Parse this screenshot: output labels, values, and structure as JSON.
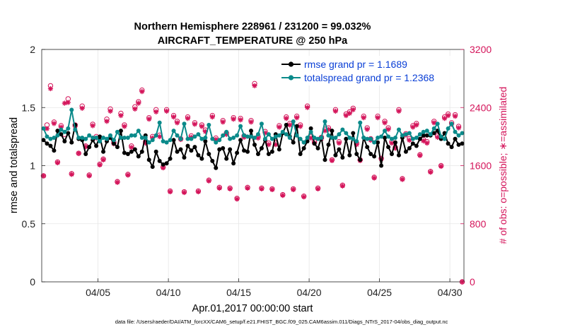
{
  "chart_data": {
    "type": "line",
    "title": "Northern Hemisphere 228961 / 231200 = 99.032%",
    "subtitle": "AIRCRAFT_TEMPERATURE @ 250 hPa",
    "xlabel": "Apr.01,2017 00:00:00 start",
    "ylabel": "rmse and totalspread",
    "ylabel_right": "# of obs: o=possible; ∗=assimilated",
    "footer": "data file: /Users/raeder/DAI/ATM_forcXX/CAM6_setup/f.e21.FHIST_BGC.f09_025.CAM6assim.011/Diags_NTrS_2017-04/obs_diag_output.nc",
    "xlim": [
      1.0,
      31.0
    ],
    "ylim": [
      0,
      2
    ],
    "ylim_right": [
      0,
      3200
    ],
    "x_ticks": [
      5,
      10,
      15,
      20,
      25,
      30
    ],
    "x_tick_labels": [
      "04/05",
      "04/10",
      "04/15",
      "04/20",
      "04/25",
      "04/30"
    ],
    "y_ticks": [
      0,
      0.5,
      1,
      1.5,
      2
    ],
    "y_tick_labels": [
      "0",
      "0.5",
      "1",
      "1.5",
      "2"
    ],
    "y_ticks_right": [
      0,
      800,
      1600,
      2400,
      3200
    ],
    "y_tick_labels_right": [
      "0",
      "800",
      "1600",
      "2400",
      "3200"
    ],
    "grid": true,
    "legend_position": "top-right",
    "series": [
      {
        "name": "rmse grand pr = 1.1689",
        "color": "#000000",
        "marker": "circle",
        "x": [
          1.125,
          1.375,
          1.625,
          1.875,
          2.125,
          2.375,
          2.625,
          2.875,
          3.125,
          3.375,
          3.625,
          3.875,
          4.125,
          4.375,
          4.625,
          4.875,
          5.125,
          5.375,
          5.625,
          5.875,
          6.125,
          6.375,
          6.625,
          6.875,
          7.125,
          7.375,
          7.625,
          7.875,
          8.125,
          8.375,
          8.625,
          8.875,
          9.125,
          9.375,
          9.625,
          9.875,
          10.125,
          10.375,
          10.625,
          10.875,
          11.125,
          11.375,
          11.625,
          11.875,
          12.125,
          12.375,
          12.625,
          12.875,
          13.125,
          13.375,
          13.625,
          13.875,
          14.125,
          14.375,
          14.625,
          14.875,
          15.125,
          15.375,
          15.625,
          15.875,
          16.125,
          16.375,
          16.625,
          16.875,
          17.125,
          17.375,
          17.625,
          17.875,
          18.125,
          18.375,
          18.625,
          18.875,
          19.125,
          19.375,
          19.625,
          19.875,
          20.125,
          20.375,
          20.625,
          20.875,
          21.125,
          21.375,
          21.625,
          21.875,
          22.125,
          22.375,
          22.625,
          22.875,
          23.125,
          23.375,
          23.625,
          23.875,
          24.125,
          24.375,
          24.625,
          24.875,
          25.125,
          25.375,
          25.625,
          25.875,
          26.125,
          26.375,
          26.625,
          26.875,
          27.125,
          27.375,
          27.625,
          27.875,
          28.125,
          28.375,
          28.625,
          28.875,
          29.125,
          29.375,
          29.625,
          29.875,
          30.125,
          30.375,
          30.625,
          30.875
        ],
        "values": [
          1.22,
          1.19,
          1.17,
          1.13,
          1.3,
          1.27,
          1.21,
          1.28,
          1.2,
          1.35,
          1.23,
          1.22,
          1.1,
          1.16,
          1.22,
          1.17,
          1.25,
          1.12,
          1.21,
          1.24,
          1.19,
          1.16,
          1.3,
          1.11,
          1.1,
          1.12,
          1.14,
          1.08,
          1.12,
          1.26,
          1.05,
          0.99,
          1.12,
          1.04,
          1.01,
          1.02,
          1.06,
          1.22,
          1.12,
          1.14,
          1.07,
          1.17,
          1.13,
          1.16,
          1.09,
          1.06,
          1.21,
          1.1,
          1.04,
          0.98,
          1.14,
          1.15,
          1.06,
          1.14,
          1.02,
          1.11,
          1.22,
          1.13,
          1.12,
          1.3,
          1.18,
          1.1,
          1.15,
          1.22,
          1.1,
          1.12,
          1.27,
          1.14,
          1.28,
          1.35,
          1.25,
          1.2,
          1.34,
          1.1,
          1.15,
          1.21,
          1.32,
          1.19,
          1.15,
          1.24,
          1.05,
          1.18,
          1.3,
          1.09,
          1.14,
          1.07,
          1.23,
          1.09,
          1.28,
          1.1,
          1.05,
          1.24,
          1.16,
          1.1,
          1.08,
          1.2,
          1.0,
          1.24,
          1.16,
          1.1,
          1.2,
          1.09,
          1.24,
          1.12,
          1.15,
          1.19,
          1.17,
          1.23,
          1.26,
          1.26,
          1.26,
          1.28,
          1.3,
          1.23,
          1.28,
          1.19,
          1.16,
          1.23,
          1.18,
          1.19
        ]
      },
      {
        "name": "totalspread grand pr = 1.2368",
        "color": "#0a8a8a",
        "marker": "circle",
        "x": [
          1.125,
          1.375,
          1.625,
          1.875,
          2.125,
          2.375,
          2.625,
          2.875,
          3.125,
          3.375,
          3.625,
          3.875,
          4.125,
          4.375,
          4.625,
          4.875,
          5.125,
          5.375,
          5.625,
          5.875,
          6.125,
          6.375,
          6.625,
          6.875,
          7.125,
          7.375,
          7.625,
          7.875,
          8.125,
          8.375,
          8.625,
          8.875,
          9.125,
          9.375,
          9.625,
          9.875,
          10.125,
          10.375,
          10.625,
          10.875,
          11.125,
          11.375,
          11.625,
          11.875,
          12.125,
          12.375,
          12.625,
          12.875,
          13.125,
          13.375,
          13.625,
          13.875,
          14.125,
          14.375,
          14.625,
          14.875,
          15.125,
          15.375,
          15.625,
          15.875,
          16.125,
          16.375,
          16.625,
          16.875,
          17.125,
          17.375,
          17.625,
          17.875,
          18.125,
          18.375,
          18.625,
          18.875,
          19.125,
          19.375,
          19.625,
          19.875,
          20.125,
          20.375,
          20.625,
          20.875,
          21.125,
          21.375,
          21.625,
          21.875,
          22.125,
          22.375,
          22.625,
          22.875,
          23.125,
          23.375,
          23.625,
          23.875,
          24.125,
          24.375,
          24.625,
          24.875,
          25.125,
          25.375,
          25.625,
          25.875,
          26.125,
          26.375,
          26.625,
          26.875,
          27.125,
          27.375,
          27.625,
          27.875,
          28.125,
          28.375,
          28.625,
          28.875,
          29.125,
          29.375,
          29.625,
          29.875,
          30.125,
          30.375,
          30.625,
          30.875
        ],
        "values": [
          1.32,
          1.25,
          1.23,
          1.24,
          1.26,
          1.31,
          1.29,
          1.32,
          1.48,
          1.31,
          1.24,
          1.24,
          1.23,
          1.26,
          1.24,
          1.24,
          1.21,
          1.24,
          1.23,
          1.26,
          1.22,
          1.29,
          1.24,
          1.24,
          1.24,
          1.26,
          1.26,
          1.3,
          1.24,
          1.24,
          1.2,
          1.22,
          1.26,
          1.37,
          1.21,
          1.2,
          1.22,
          1.3,
          1.26,
          1.23,
          1.36,
          1.23,
          1.23,
          1.25,
          1.27,
          1.23,
          1.24,
          1.35,
          1.23,
          1.2,
          1.22,
          1.26,
          1.29,
          1.23,
          1.24,
          1.26,
          1.34,
          1.26,
          1.25,
          1.25,
          1.24,
          1.27,
          1.36,
          1.23,
          1.27,
          1.23,
          1.25,
          1.26,
          1.29,
          1.27,
          1.24,
          1.38,
          1.26,
          1.23,
          1.2,
          1.24,
          1.29,
          1.24,
          1.23,
          1.24,
          1.38,
          1.26,
          1.24,
          1.24,
          1.27,
          1.31,
          1.28,
          1.24,
          1.23,
          1.21,
          1.37,
          1.24,
          1.23,
          1.23,
          1.2,
          1.24,
          1.25,
          1.3,
          1.25,
          1.23,
          1.24,
          1.31,
          1.26,
          1.27,
          1.28,
          1.23,
          1.24,
          1.27,
          1.29,
          1.3,
          1.27,
          1.32,
          1.36,
          1.25,
          1.23,
          1.32,
          1.36,
          1.29,
          1.26,
          1.28
        ]
      },
      {
        "name": "obs possible",
        "axis": "right",
        "color": "#d4145a",
        "marker": "circle-open",
        "x": [
          1.125,
          1.375,
          1.625,
          1.875,
          2.125,
          2.375,
          2.625,
          2.875,
          3.125,
          3.375,
          3.625,
          3.875,
          4.125,
          4.375,
          4.625,
          4.875,
          5.125,
          5.375,
          5.625,
          5.875,
          6.125,
          6.375,
          6.625,
          6.875,
          7.125,
          7.375,
          7.625,
          7.875,
          8.125,
          8.375,
          8.625,
          8.875,
          9.125,
          9.375,
          9.625,
          9.875,
          10.125,
          10.375,
          10.625,
          10.875,
          11.125,
          11.375,
          11.625,
          11.875,
          12.125,
          12.375,
          12.625,
          12.875,
          13.125,
          13.375,
          13.625,
          13.875,
          14.125,
          14.375,
          14.625,
          14.875,
          15.125,
          15.375,
          15.625,
          15.875,
          16.125,
          16.375,
          16.625,
          16.875,
          17.125,
          17.375,
          17.625,
          17.875,
          18.125,
          18.375,
          18.625,
          18.875,
          19.125,
          19.375,
          19.625,
          19.875,
          20.125,
          20.375,
          20.625,
          20.875,
          21.125,
          21.375,
          21.625,
          21.875,
          22.125,
          22.375,
          22.625,
          22.875,
          23.125,
          23.375,
          23.625,
          23.875,
          24.125,
          24.375,
          24.625,
          24.875,
          25.125,
          25.375,
          25.625,
          25.875,
          26.125,
          26.375,
          26.625,
          26.875,
          27.125,
          27.375,
          27.625,
          27.875,
          28.125,
          28.375,
          28.625,
          28.875,
          29.125,
          29.375,
          29.625,
          29.875,
          30.125,
          30.375,
          30.625,
          30.875
        ],
        "values": [
          1460,
          2160,
          2700,
          2200,
          1650,
          2150,
          2030,
          2520,
          1490,
          2160,
          1770,
          2420,
          1870,
          1470,
          2170,
          2000,
          1620,
          1690,
          2240,
          2380,
          1920,
          1380,
          2320,
          2160,
          1480,
          1870,
          2410,
          2480,
          2640,
          1930,
          2260,
          2000,
          2370,
          2020,
          1580,
          2370,
          1250,
          2290,
          2210,
          1970,
          1240,
          2270,
          2010,
          2190,
          1250,
          2160,
          2090,
          1400,
          2290,
          1980,
          1300,
          2220,
          2050,
          1290,
          2260,
          1150,
          2250,
          2010,
          1300,
          2220,
          2730,
          2000,
          1290,
          2070,
          1910,
          1280,
          1910,
          2150,
          1200,
          2270,
          2180,
          1280,
          2280,
          2160,
          1180,
          2420,
          2000,
          1930,
          1290,
          1990,
          2100,
          2120,
          1680,
          2370,
          1930,
          1330,
          2310,
          2340,
          2390,
          1910,
          1680,
          2280,
          2120,
          1970,
          1440,
          2280,
          1700,
          2210,
          2120,
          1930,
          1850,
          2370,
          1420,
          2040,
          1970,
          2150,
          2180,
          1750,
          1960,
          1930,
          1520,
          2210,
          2010,
          1600,
          2270,
          2310,
          2190,
          2300,
          2140,
          0
        ]
      },
      {
        "name": "obs assimilated",
        "axis": "right",
        "color": "#d4145a",
        "marker": "asterisk",
        "x": [
          1.125,
          1.375,
          1.625,
          1.875,
          2.125,
          2.375,
          2.625,
          2.875,
          3.125,
          3.375,
          3.625,
          3.875,
          4.125,
          4.375,
          4.625,
          4.875,
          5.125,
          5.375,
          5.625,
          5.875,
          6.125,
          6.375,
          6.625,
          6.875,
          7.125,
          7.375,
          7.625,
          7.875,
          8.125,
          8.375,
          8.625,
          8.875,
          9.125,
          9.375,
          9.625,
          9.875,
          10.125,
          10.375,
          10.625,
          10.875,
          11.125,
          11.375,
          11.625,
          11.875,
          12.125,
          12.375,
          12.625,
          12.875,
          13.125,
          13.375,
          13.625,
          13.875,
          14.125,
          14.375,
          14.625,
          14.875,
          15.125,
          15.375,
          15.625,
          15.875,
          16.125,
          16.375,
          16.625,
          16.875,
          17.125,
          17.375,
          17.625,
          17.875,
          18.125,
          18.375,
          18.625,
          18.875,
          19.125,
          19.375,
          19.625,
          19.875,
          20.125,
          20.375,
          20.625,
          20.875,
          21.125,
          21.375,
          21.625,
          21.875,
          22.125,
          22.375,
          22.625,
          22.875,
          23.125,
          23.375,
          23.625,
          23.875,
          24.125,
          24.375,
          24.625,
          24.875,
          25.125,
          25.375,
          25.625,
          25.875,
          26.125,
          26.375,
          26.625,
          26.875,
          27.125,
          27.375,
          27.625,
          27.875,
          28.125,
          28.375,
          28.625,
          28.875,
          29.125,
          29.375,
          29.625,
          29.875,
          30.125,
          30.375,
          30.625,
          30.875
        ],
        "values": [
          1460,
          2110,
          2660,
          2180,
          1640,
          2130,
          2460,
          2470,
          1480,
          2140,
          1770,
          2390,
          1860,
          1460,
          2150,
          1980,
          1610,
          1680,
          2210,
          2350,
          1900,
          1370,
          2290,
          2140,
          1470,
          1850,
          2380,
          2460,
          2620,
          1910,
          2240,
          1980,
          2340,
          2000,
          1570,
          2350,
          1240,
          2270,
          2190,
          1960,
          1230,
          2250,
          1990,
          2170,
          1240,
          2140,
          2070,
          1390,
          2270,
          1960,
          1290,
          2200,
          2030,
          1280,
          2240,
          1140,
          2230,
          1990,
          1290,
          2200,
          2700,
          1980,
          1280,
          2050,
          1890,
          1270,
          1890,
          2130,
          1190,
          2250,
          2160,
          1270,
          2260,
          2140,
          1170,
          2400,
          1980,
          1910,
          1280,
          1970,
          2080,
          2100,
          1670,
          2350,
          1910,
          1320,
          2290,
          2320,
          2370,
          1890,
          1670,
          2260,
          2100,
          1950,
          1430,
          2260,
          1690,
          2190,
          2100,
          1910,
          1840,
          2350,
          1410,
          2020,
          1950,
          2130,
          2160,
          1740,
          1940,
          1910,
          1510,
          2190,
          1990,
          1590,
          2250,
          2290,
          2170,
          2280,
          2120,
          0
        ]
      }
    ]
  }
}
